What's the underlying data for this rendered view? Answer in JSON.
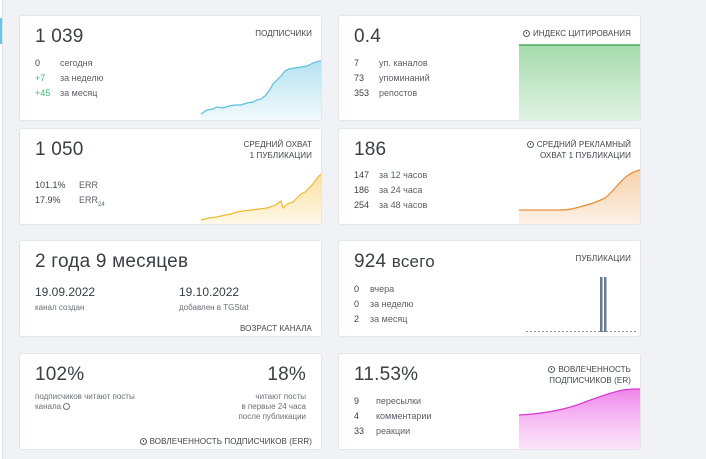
{
  "subscribers": {
    "value": "1 039",
    "title": "ПОДПИСЧИКИ",
    "rows": [
      {
        "n": "0",
        "label": "сегодня"
      },
      {
        "n": "+7",
        "label": "за неделю"
      },
      {
        "n": "+45",
        "label": "за месяц"
      }
    ],
    "color": "#5bc0de"
  },
  "citation": {
    "value": "0.4",
    "title": "ИНДЕКС ЦИТИРОВАНИЯ",
    "rows": [
      {
        "n": "7",
        "label": "уп. каналов"
      },
      {
        "n": "73",
        "label": "упоминаний"
      },
      {
        "n": "353",
        "label": "репостов"
      }
    ],
    "color": "#5cbf6a"
  },
  "reach": {
    "value": "1 050",
    "title_1": "СРЕДНИЙ ОХВАТ",
    "title_2": "1 ПУБЛИКАЦИИ",
    "err_value": "101.1%",
    "err_label": "ERR",
    "err24_value": "17.9%",
    "err24_label": "ERR",
    "err24_sub": "24",
    "color": "#f5c342"
  },
  "ad_reach": {
    "value": "186",
    "title_1": "СРЕДНИЙ РЕКЛАМНЫЙ",
    "title_2": "ОХВАТ 1 ПУБЛИКАЦИИ",
    "rows": [
      {
        "n": "147",
        "label": "за 12 часов"
      },
      {
        "n": "186",
        "label": "за 24 часа"
      },
      {
        "n": "254",
        "label": "за 48 часов"
      }
    ],
    "color": "#f0a35a"
  },
  "age": {
    "value": "2 года 9 месяцев",
    "created_date": "19.09.2022",
    "created_label": "канал создан",
    "added_date": "19.10.2022",
    "added_label": "добавлен в TGStat",
    "title": "ВОЗРАСТ КАНАЛА"
  },
  "posts": {
    "value": "924",
    "value_suffix": "всего",
    "title": "ПУБЛИКАЦИИ",
    "rows": [
      {
        "n": "0",
        "label": "вчера"
      },
      {
        "n": "0",
        "label": "за неделю"
      },
      {
        "n": "2",
        "label": "за месяц"
      }
    ],
    "color": "#6b7a8c"
  },
  "err": {
    "value_left": "102%",
    "desc_left_1": "подписчиков читают посты",
    "desc_left_2": "канала",
    "value_right": "18%",
    "desc_right_1": "читают посты",
    "desc_right_2": "в первые 24 часа",
    "desc_right_3": "после публикации",
    "title": "ВОВЛЕЧЕННОСТЬ ПОДПИСЧИКОВ (ERR)"
  },
  "er": {
    "value": "11.53%",
    "title_1": "ВОВЛЕЧЕННОСТЬ",
    "title_2": "ПОДПИСЧИКОВ (ER)",
    "rows": [
      {
        "n": "9",
        "label": "пересылки"
      },
      {
        "n": "4",
        "label": "комментарии"
      },
      {
        "n": "33",
        "label": "реакции"
      }
    ],
    "color": "#e650e0"
  }
}
